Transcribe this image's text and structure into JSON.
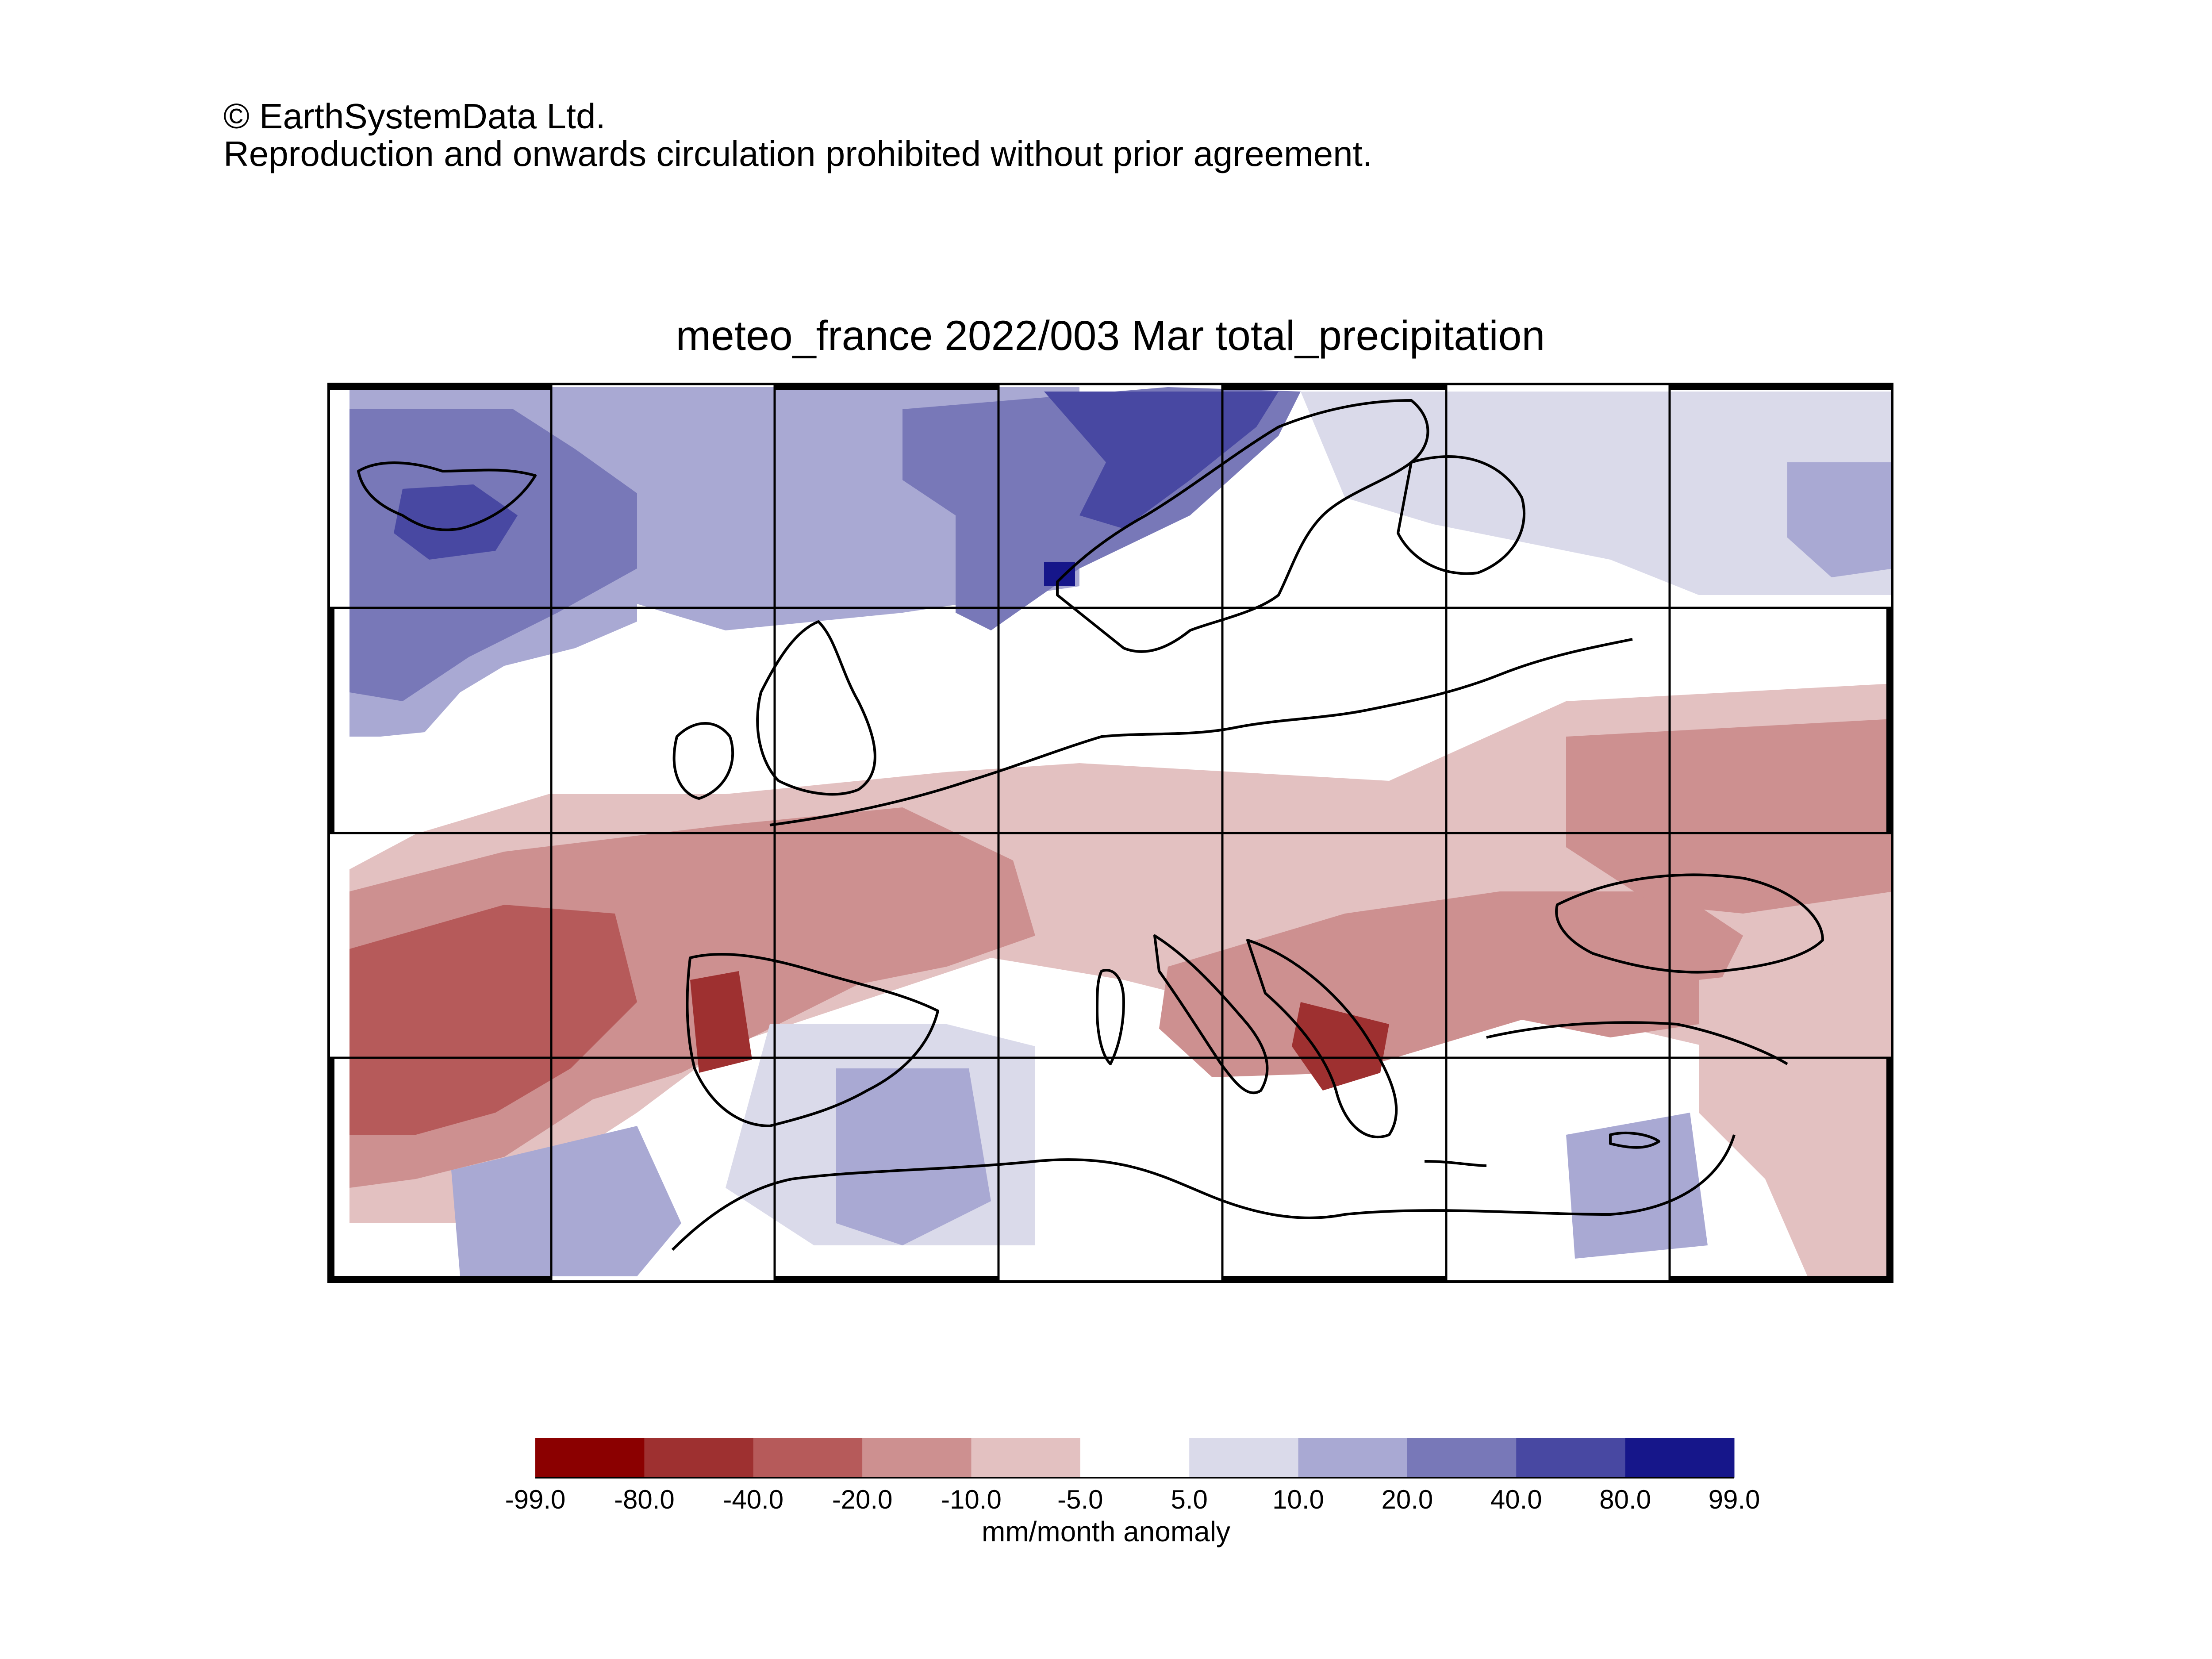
{
  "copyright": {
    "line1": "© EarthSystemData Ltd.",
    "line2": "Reproduction and onwards circulation prohibited without prior agreement."
  },
  "map": {
    "title": "meteo_france 2022/003 Mar total_precipitation",
    "region": "Europe and Mediterranean",
    "graticule_cols": 7,
    "graticule_rows": 4,
    "anomaly_field_summary": "wet (blue) over the North Atlantic, Iceland and Scandinavia; dry (red) across Iberia, France, central Europe, Italy, the Balkans and Turkey; near-neutral (white) over the Mediterranean and North Africa"
  },
  "colorbar": {
    "label": "mm/month anomaly",
    "ticks": [
      "-99.0",
      "-80.0",
      "-40.0",
      "-20.0",
      "-10.0",
      "-5.0",
      "5.0",
      "10.0",
      "20.0",
      "40.0",
      "80.0",
      "99.0"
    ],
    "colors": [
      "#8b0000",
      "#9e3030",
      "#b65a5a",
      "#cd9090",
      "#e3c1c1",
      "#ffffff",
      "#dadaea",
      "#a9a9d3",
      "#7878b8",
      "#4848a2",
      "#16168a"
    ]
  }
}
